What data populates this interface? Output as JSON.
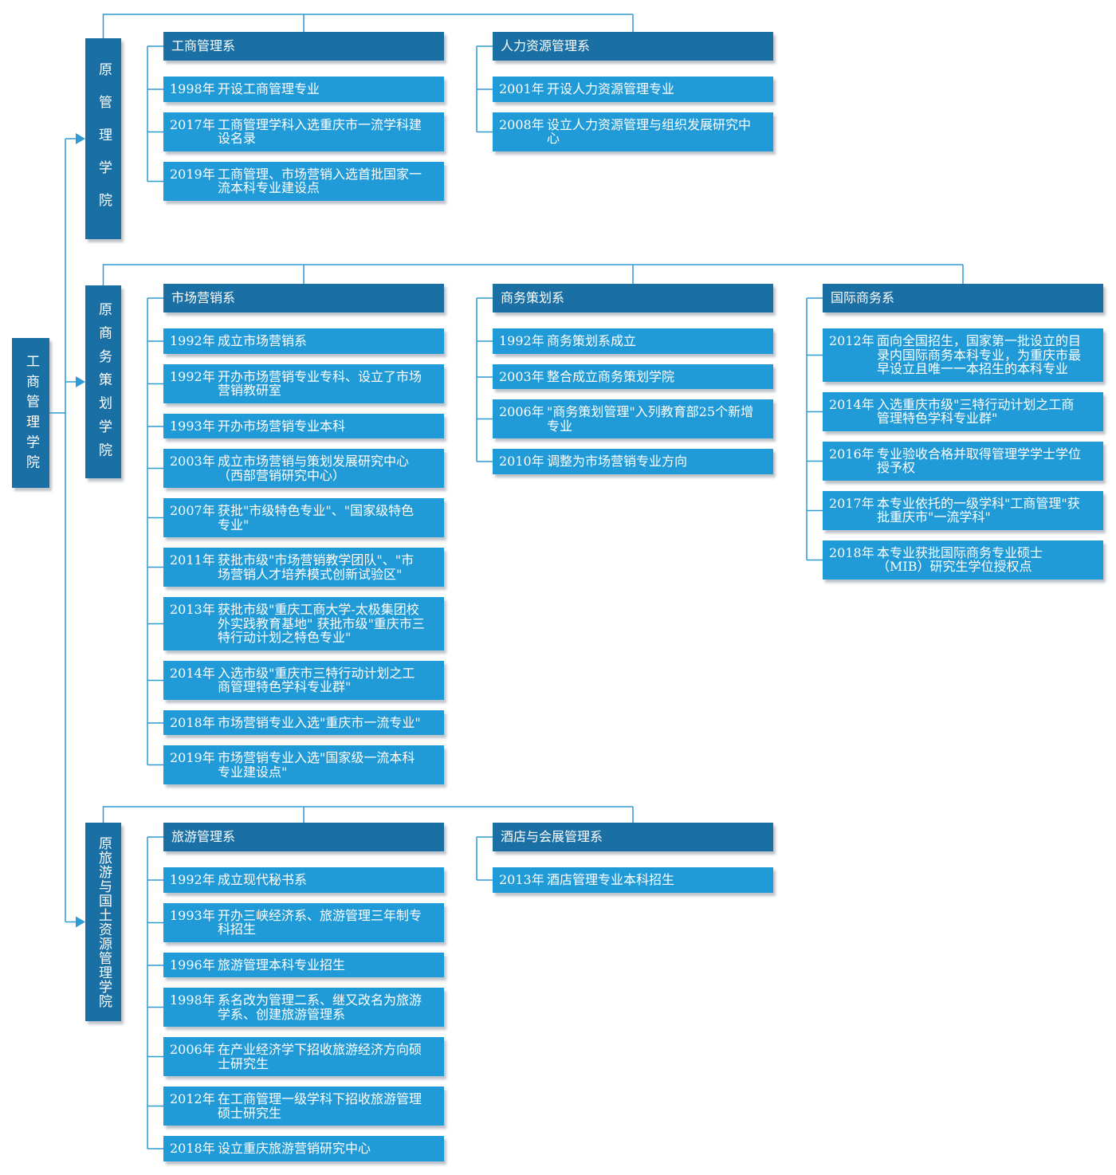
{
  "root": {
    "label": "工商管理学院"
  },
  "colors": {
    "dark_node": "#1a70a4",
    "light_node": "#209bd8",
    "connector_line": "#2e9bd3",
    "text": "#ffffff"
  },
  "sections": [
    {
      "id": "former-management-college",
      "branch_label": "原管理学院",
      "columns": [
        {
          "id": "business-administration",
          "header": "工商管理系",
          "items": [
            {
              "year": "1998年",
              "text": "开设工商管理专业"
            },
            {
              "year": "2017年",
              "text": "工商管理学科入选重庆市一流学科建设名录"
            },
            {
              "year": "2019年",
              "text": "工商管理、市场营销入选首批国家一流本科专业建设点"
            }
          ]
        },
        {
          "id": "human-resources",
          "header": "人力资源管理系",
          "items": [
            {
              "year": "2001年",
              "text": "开设人力资源管理专业"
            },
            {
              "year": "2008年",
              "text": "设立人力资源管理与组织发展研究中心"
            }
          ]
        }
      ]
    },
    {
      "id": "former-business-planning-college",
      "branch_label": "原商务策划学院",
      "columns": [
        {
          "id": "marketing",
          "header": "市场营销系",
          "items": [
            {
              "year": "1992年",
              "text": "成立市场营销系"
            },
            {
              "year": "1992年",
              "text": "开办市场营销专业专科、设立了市场营销教研室"
            },
            {
              "year": "1993年",
              "text": "开办市场营销专业本科"
            },
            {
              "year": "2003年",
              "text": "成立市场营销与策划发展研究中心（西部营销研究中心）"
            },
            {
              "year": "2007年",
              "text": "获批\"市级特色专业\"、\"国家级特色专业\""
            },
            {
              "year": "2011年",
              "text": "获批市级\"市场营销教学团队\"、\"市场营销人才培养模式创新试验区\""
            },
            {
              "year": "2013年",
              "text": "获批市级\"重庆工商大学-太极集团校外实践教育基地\" 获批市级\"重庆市三特行动计划之特色专业\""
            },
            {
              "year": "2014年",
              "text": "入选市级\"重庆市三特行动计划之工商管理特色学科专业群\""
            },
            {
              "year": "2018年",
              "text": "市场营销专业入选\"重庆市一流专业\""
            },
            {
              "year": "2019年",
              "text": "市场营销专业入选\"国家级一流本科专业建设点\""
            }
          ]
        },
        {
          "id": "business-planning",
          "header": "商务策划系",
          "items": [
            {
              "year": "1992年",
              "text": "商务策划系成立"
            },
            {
              "year": "2003年",
              "text": "整合成立商务策划学院"
            },
            {
              "year": "2006年",
              "text": "\"商务策划管理\"入列教育部25个新增专业"
            },
            {
              "year": "2010年",
              "text": "调整为市场营销专业方向"
            }
          ]
        },
        {
          "id": "international-business",
          "header": "国际商务系",
          "items": [
            {
              "year": "2012年",
              "text": "面向全国招生，国家第一批设立的目录内国际商务本科专业，为重庆市最早设立且唯一一本招生的本科专业"
            },
            {
              "year": "2014年",
              "text": "入选重庆市级\"三特行动计划之工商管理特色学科专业群\""
            },
            {
              "year": "2016年",
              "text": "专业验收合格并取得管理学学士学位授予权"
            },
            {
              "year": "2017年",
              "text": "本专业依托的一级学科\"工商管理\"获批重庆市\"一流学科\""
            },
            {
              "year": "2018年",
              "text": "本专业获批国际商务专业硕士（MIB）研究生学位授权点"
            }
          ]
        }
      ]
    },
    {
      "id": "former-tourism-land-resources-college",
      "branch_label": "原旅游与国土资源管理学院",
      "columns": [
        {
          "id": "tourism-management",
          "header": "旅游管理系",
          "items": [
            {
              "year": "1992年",
              "text": "成立现代秘书系"
            },
            {
              "year": "1993年",
              "text": "开办三峡经济系、旅游管理三年制专科招生"
            },
            {
              "year": "1996年",
              "text": "旅游管理本科专业招生"
            },
            {
              "year": "1998年",
              "text": "系名改为管理二系、继又改名为旅游学系、创建旅游管理系"
            },
            {
              "year": "2006年",
              "text": "在产业经济学下招收旅游经济方向硕士研究生"
            },
            {
              "year": "2012年",
              "text": "在工商管理一级学科下招收旅游管理硕士研究生"
            },
            {
              "year": "2018年",
              "text": "设立重庆旅游营销研究中心"
            }
          ]
        },
        {
          "id": "hotel-and-mice-management",
          "header": "酒店与会展管理系",
          "items": [
            {
              "year": "2013年",
              "text": "酒店管理专业本科招生"
            }
          ]
        }
      ]
    }
  ]
}
